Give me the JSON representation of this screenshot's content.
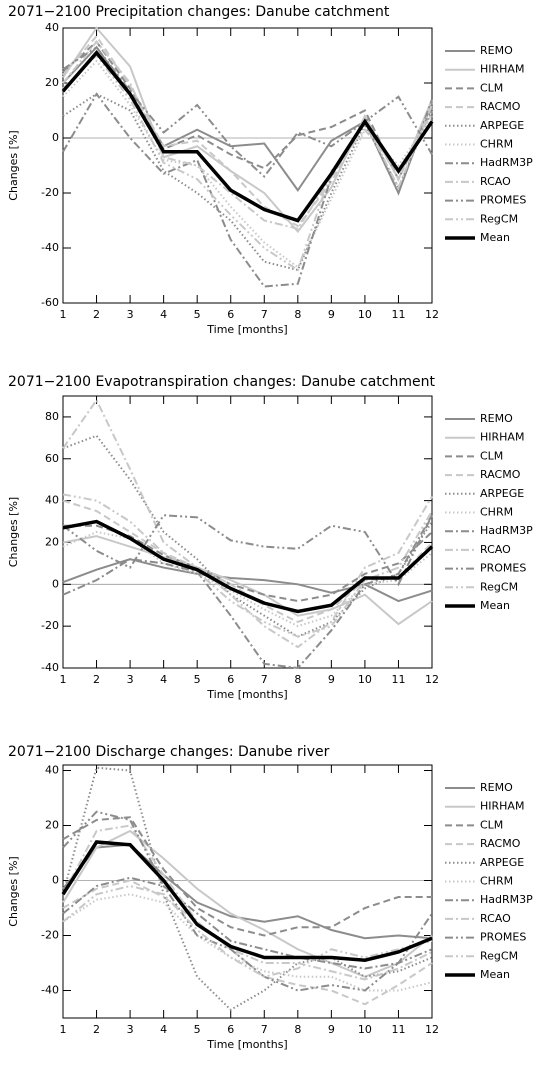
{
  "chart_data": [
    {
      "type": "line",
      "title": "2071−2100 Precipitation changes: Danube catchment",
      "x_label": "Time [months]",
      "y_label": "Changes [%]",
      "x": [
        1,
        2,
        3,
        4,
        5,
        6,
        7,
        8,
        9,
        10,
        11,
        12
      ],
      "xlim": [
        1,
        12
      ],
      "xticks": [
        1,
        2,
        3,
        4,
        5,
        6,
        7,
        8,
        9,
        10,
        11,
        12
      ],
      "ylim": [
        -60,
        40
      ],
      "yticks": [
        -60,
        -40,
        -20,
        0,
        20,
        40
      ],
      "zero_line": true,
      "legend": "right",
      "series": [
        {
          "name": "REMO",
          "color": "#8c8c8c",
          "dash": "solid",
          "values": [
            20,
            33,
            16,
            -3,
            3,
            -3,
            -2,
            -19,
            -1,
            6,
            -20,
            13
          ]
        },
        {
          "name": "HIRHAM",
          "color": "#c8c8c8",
          "dash": "solid",
          "values": [
            22,
            40,
            26,
            -7,
            -3,
            -12,
            -20,
            -34,
            -18,
            8,
            -15,
            14
          ]
        },
        {
          "name": "CLM",
          "color": "#8c8c8c",
          "dash": "dashed",
          "values": [
            24,
            35,
            18,
            -4,
            1,
            -6,
            -11,
            1,
            4,
            10,
            -15,
            11
          ]
        },
        {
          "name": "RACMO",
          "color": "#c8c8c8",
          "dash": "dashed",
          "values": [
            23,
            37,
            19,
            -3,
            -1,
            -12,
            -25,
            -32,
            -16,
            7,
            -15,
            13
          ]
        },
        {
          "name": "ARPEGE",
          "color": "#8c8c8c",
          "dash": "dotted",
          "values": [
            8,
            16,
            10,
            -12,
            -20,
            -30,
            -45,
            -48,
            -20,
            5,
            -18,
            10
          ]
        },
        {
          "name": "CHRM",
          "color": "#c8c8c8",
          "dash": "dotted",
          "values": [
            15,
            28,
            12,
            -8,
            -10,
            -25,
            -38,
            -47,
            -22,
            3,
            -10,
            8
          ]
        },
        {
          "name": "HadRM3P",
          "color": "#8c8c8c",
          "dash": "dashdot",
          "values": [
            -5,
            16,
            0,
            -13,
            -8,
            -37,
            -54,
            -53,
            -14,
            6,
            -20,
            14
          ]
        },
        {
          "name": "RCAO",
          "color": "#c8c8c8",
          "dash": "dashdot",
          "values": [
            20,
            35,
            20,
            -7,
            -10,
            -20,
            -30,
            -33,
            -14,
            6,
            -18,
            12
          ]
        },
        {
          "name": "PROMES",
          "color": "#8c8c8c",
          "dash": "dashdotdot",
          "values": [
            25,
            33,
            17,
            2,
            12,
            -3,
            -14,
            2,
            -3,
            6,
            15,
            -6
          ]
        },
        {
          "name": "RegCM",
          "color": "#c8c8c8",
          "dash": "dashdotdot",
          "values": [
            18,
            30,
            14,
            -9,
            -15,
            -28,
            -40,
            -48,
            -12,
            3,
            -12,
            9
          ]
        },
        {
          "name": "Mean",
          "color": "#000000",
          "dash": "thick",
          "values": [
            17,
            31,
            16,
            -5,
            -5,
            -19,
            -26,
            -30,
            -13,
            6,
            -12,
            6
          ]
        }
      ]
    },
    {
      "type": "line",
      "title": "2071−2100 Evapotranspiration changes: Danube catchment",
      "x_label": "Time [months]",
      "y_label": "Changes [%]",
      "x": [
        1,
        2,
        3,
        4,
        5,
        6,
        7,
        8,
        9,
        10,
        11,
        12
      ],
      "xlim": [
        1,
        12
      ],
      "xticks": [
        1,
        2,
        3,
        4,
        5,
        6,
        7,
        8,
        9,
        10,
        11,
        12
      ],
      "ylim": [
        -40,
        90
      ],
      "yticks": [
        -40,
        -20,
        0,
        20,
        40,
        60,
        80
      ],
      "zero_line": true,
      "legend": "right",
      "series": [
        {
          "name": "REMO",
          "color": "#8c8c8c",
          "dash": "solid",
          "values": [
            1,
            7,
            12,
            8,
            5,
            3,
            2,
            0,
            -4,
            0,
            -8,
            -3
          ]
        },
        {
          "name": "HIRHAM",
          "color": "#c8c8c8",
          "dash": "solid",
          "values": [
            20,
            23,
            18,
            13,
            8,
            2,
            -5,
            -15,
            -12,
            -5,
            -19,
            -8
          ]
        },
        {
          "name": "CLM",
          "color": "#8c8c8c",
          "dash": "dashed",
          "values": [
            28,
            28,
            23,
            14,
            8,
            0,
            -5,
            -8,
            -5,
            5,
            10,
            25
          ]
        },
        {
          "name": "RACMO",
          "color": "#c8c8c8",
          "dash": "dashed",
          "values": [
            40,
            35,
            25,
            15,
            8,
            0,
            -10,
            -18,
            -12,
            2,
            3,
            20
          ]
        },
        {
          "name": "ARPEGE",
          "color": "#8c8c8c",
          "dash": "dotted",
          "values": [
            65,
            71,
            50,
            25,
            12,
            -5,
            -15,
            -25,
            -18,
            -2,
            5,
            30
          ]
        },
        {
          "name": "CHRM",
          "color": "#c8c8c8",
          "dash": "dotted",
          "values": [
            18,
            25,
            22,
            10,
            5,
            -3,
            -12,
            -20,
            -15,
            0,
            2,
            15
          ]
        },
        {
          "name": "HadRM3P",
          "color": "#8c8c8c",
          "dash": "dashdot",
          "values": [
            -5,
            2,
            12,
            10,
            6,
            -15,
            -38,
            -40,
            -22,
            0,
            5,
            33
          ]
        },
        {
          "name": "RCAO",
          "color": "#c8c8c8",
          "dash": "dashdot",
          "values": [
            65,
            88,
            55,
            20,
            8,
            -5,
            -20,
            -30,
            -18,
            8,
            15,
            42
          ]
        },
        {
          "name": "PROMES",
          "color": "#8c8c8c",
          "dash": "dashdotdot",
          "values": [
            28,
            16,
            8,
            33,
            32,
            21,
            18,
            17,
            28,
            25,
            0,
            33
          ]
        },
        {
          "name": "RegCM",
          "color": "#c8c8c8",
          "dash": "dashdotdot",
          "values": [
            43,
            40,
            30,
            15,
            6,
            -8,
            -18,
            -25,
            -20,
            2,
            8,
            35
          ]
        },
        {
          "name": "Mean",
          "color": "#000000",
          "dash": "thick",
          "values": [
            27,
            30,
            22,
            12,
            7,
            -2,
            -9,
            -13,
            -10,
            3,
            3,
            18
          ]
        }
      ]
    },
    {
      "type": "line",
      "title": "2071−2100 Discharge changes: Danube river",
      "x_label": "Time [months]",
      "y_label": "Changes [%]",
      "x": [
        1,
        2,
        3,
        4,
        5,
        6,
        7,
        8,
        9,
        10,
        11,
        12
      ],
      "xlim": [
        1,
        12
      ],
      "xticks": [
        1,
        2,
        3,
        4,
        5,
        6,
        7,
        8,
        9,
        10,
        11,
        12
      ],
      "ylim": [
        -50,
        42
      ],
      "yticks": [
        -40,
        -20,
        0,
        20,
        40
      ],
      "zero_line": true,
      "legend": "right",
      "series": [
        {
          "name": "REMO",
          "color": "#8c8c8c",
          "dash": "solid",
          "values": [
            -3,
            12,
            13,
            2,
            -8,
            -13,
            -15,
            -13,
            -18,
            -21,
            -20,
            -21
          ]
        },
        {
          "name": "HIRHAM",
          "color": "#c8c8c8",
          "dash": "solid",
          "values": [
            -8,
            12,
            18,
            8,
            -3,
            -12,
            -18,
            -25,
            -30,
            -35,
            -30,
            -20
          ]
        },
        {
          "name": "CLM",
          "color": "#8c8c8c",
          "dash": "dashed",
          "values": [
            15,
            22,
            23,
            4,
            -10,
            -17,
            -20,
            -17,
            -17,
            -10,
            -6,
            -6
          ]
        },
        {
          "name": "RACMO",
          "color": "#c8c8c8",
          "dash": "dashed",
          "values": [
            -10,
            -3,
            0,
            -6,
            -15,
            -25,
            -35,
            -38,
            -40,
            -45,
            -38,
            -30
          ]
        },
        {
          "name": "ARPEGE",
          "color": "#8c8c8c",
          "dash": "dotted",
          "values": [
            -5,
            41,
            40,
            -5,
            -35,
            -47,
            -40,
            -30,
            -28,
            -35,
            -33,
            -28
          ]
        },
        {
          "name": "CHRM",
          "color": "#c8c8c8",
          "dash": "dotted",
          "values": [
            -15,
            -7,
            -5,
            -8,
            -20,
            -28,
            -33,
            -35,
            -35,
            -40,
            -40,
            -37
          ]
        },
        {
          "name": "HadRM3P",
          "color": "#8c8c8c",
          "dash": "dashdot",
          "values": [
            -12,
            -2,
            1,
            -2,
            -12,
            -22,
            -25,
            -28,
            -30,
            -32,
            -30,
            -12
          ]
        },
        {
          "name": "RCAO",
          "color": "#c8c8c8",
          "dash": "dashdot",
          "values": [
            -5,
            18,
            20,
            2,
            -15,
            -25,
            -30,
            -30,
            -33,
            -36,
            -32,
            -26
          ]
        },
        {
          "name": "PROMES",
          "color": "#8c8c8c",
          "dash": "dashdotdot",
          "values": [
            12,
            25,
            22,
            -2,
            -20,
            -25,
            -35,
            -40,
            -38,
            -40,
            -30,
            -25
          ]
        },
        {
          "name": "RegCM",
          "color": "#c8c8c8",
          "dash": "dashdotdot",
          "values": [
            -15,
            -5,
            -2,
            -5,
            -18,
            -28,
            -35,
            -32,
            -25,
            -28,
            -25,
            -22
          ]
        },
        {
          "name": "Mean",
          "color": "#000000",
          "dash": "thick",
          "values": [
            -5,
            14,
            13,
            0,
            -16,
            -24,
            -28,
            -28,
            -28,
            -29,
            -26,
            -21
          ]
        }
      ]
    }
  ]
}
